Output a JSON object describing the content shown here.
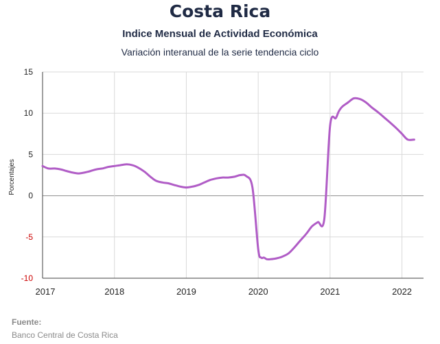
{
  "header": {
    "title": "Costa Rica",
    "subtitle": "Indice Mensual de  Actividad Económica",
    "subtitle2": "Variación interanual de la serie tendencia ciclo"
  },
  "footer": {
    "source_label": "Fuente:",
    "source_text": "Banco Central de Costa Rica"
  },
  "chart_data": {
    "type": "line",
    "title": "",
    "xlabel": "",
    "ylabel": "Porcentajes",
    "ylim": [
      -10,
      15
    ],
    "xlim": [
      2017,
      2022.3
    ],
    "yticks": [
      15,
      10,
      5,
      0,
      -5,
      -10
    ],
    "xticks": [
      2017,
      2018,
      2019,
      2020,
      2021,
      2022
    ],
    "grid": true,
    "colors": {
      "line": "#b05cc6",
      "grid": "#d9d9d9",
      "negative_tick": "#cc0000",
      "axis": "#404040"
    },
    "series": [
      {
        "x": [
          2017.0,
          2017.08,
          2017.17,
          2017.25,
          2017.33,
          2017.42,
          2017.5,
          2017.58,
          2017.67,
          2017.75,
          2017.83,
          2017.92,
          2018.0,
          2018.08,
          2018.17,
          2018.25,
          2018.33,
          2018.42,
          2018.5,
          2018.58,
          2018.67,
          2018.75,
          2018.83,
          2018.92,
          2019.0,
          2019.08,
          2019.17,
          2019.25,
          2019.33,
          2019.42,
          2019.5,
          2019.58,
          2019.67,
          2019.75,
          2019.83,
          2019.92,
          2020.0,
          2020.04,
          2020.08,
          2020.12,
          2020.17,
          2020.25,
          2020.33,
          2020.42,
          2020.5,
          2020.58,
          2020.67,
          2020.75,
          2020.83,
          2020.92,
          2021.0,
          2021.08,
          2021.12,
          2021.17,
          2021.25,
          2021.33,
          2021.42,
          2021.5,
          2021.58,
          2021.67,
          2021.75,
          2021.83,
          2021.92,
          2022.0,
          2022.08,
          2022.17
        ],
        "y": [
          3.6,
          3.3,
          3.3,
          3.2,
          3.0,
          2.8,
          2.7,
          2.8,
          3.0,
          3.2,
          3.3,
          3.5,
          3.6,
          3.7,
          3.8,
          3.7,
          3.4,
          2.9,
          2.3,
          1.8,
          1.6,
          1.5,
          1.3,
          1.1,
          1.0,
          1.1,
          1.3,
          1.6,
          1.9,
          2.1,
          2.2,
          2.2,
          2.3,
          2.5,
          2.4,
          1.0,
          -6.5,
          -7.5,
          -7.5,
          -7.7,
          -7.7,
          -7.6,
          -7.4,
          -7.0,
          -6.3,
          -5.5,
          -4.6,
          -3.7,
          -3.2,
          -2.8,
          8.5,
          9.4,
          10.2,
          10.8,
          11.3,
          11.8,
          11.7,
          11.3,
          10.7,
          10.1,
          9.5,
          8.9,
          8.2,
          7.5,
          6.8,
          6.8
        ]
      }
    ]
  }
}
